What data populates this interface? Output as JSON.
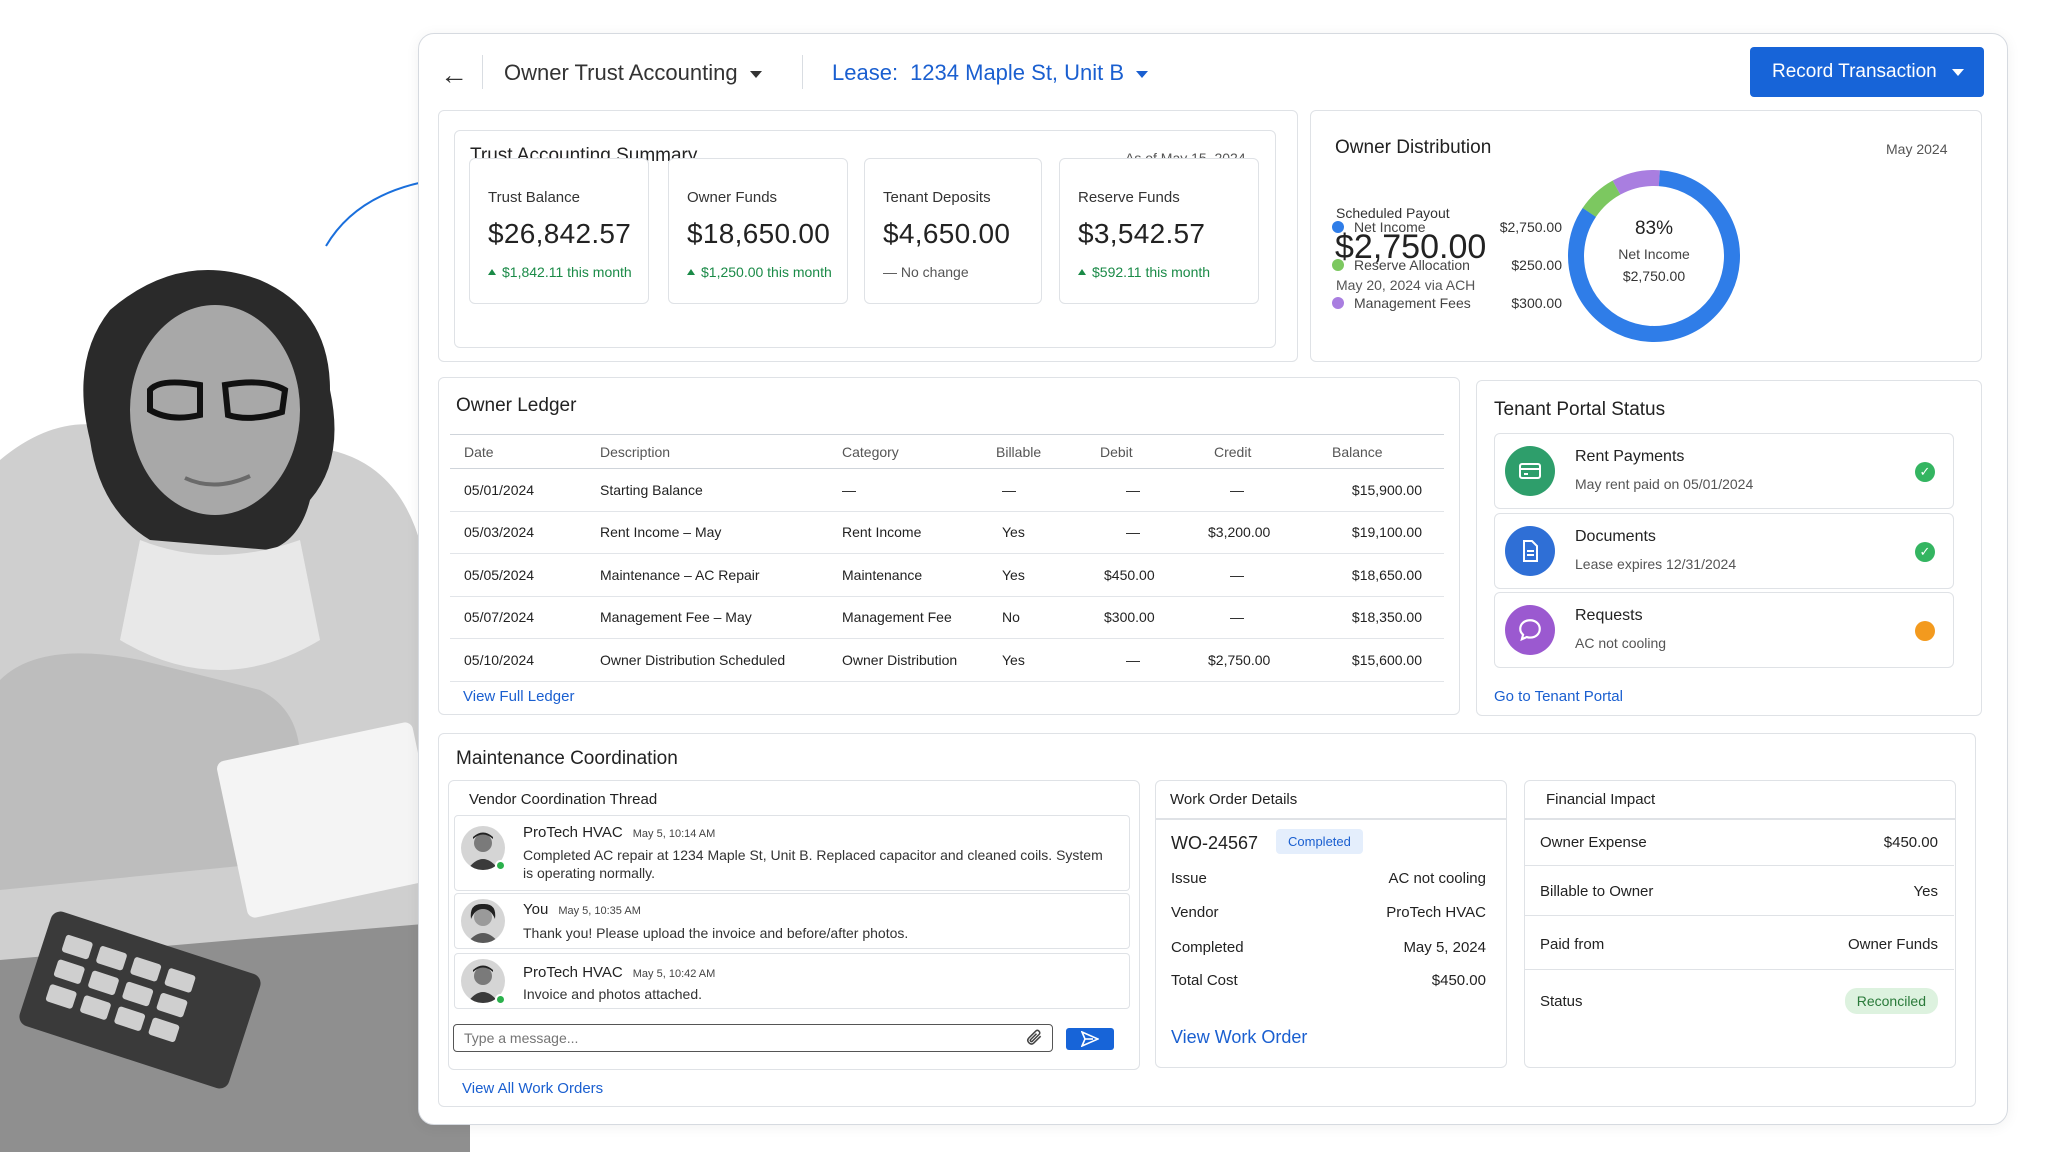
{
  "topbar": {
    "section": "Owner Trust Accounting",
    "lease_label": "Lease:",
    "lease_value": "1234 Maple St, Unit B",
    "record_button": "Record Transaction"
  },
  "summary": {
    "title": "Trust Accounting Summary",
    "as_of": "As of May 15, 2024",
    "cards": [
      {
        "label": "Trust Balance",
        "value": "$26,842.57",
        "change": "$1,842.11 this month",
        "trend": "up"
      },
      {
        "label": "Owner Funds",
        "value": "$18,650.00",
        "change": "$1,250.00 this month",
        "trend": "up"
      },
      {
        "label": "Tenant Deposits",
        "value": "$4,650.00",
        "change": "— No change",
        "trend": "none"
      },
      {
        "label": "Reserve Funds",
        "value": "$3,542.57",
        "change": "$592.11 this month",
        "trend": "up"
      }
    ]
  },
  "distribution": {
    "title": "Owner Distribution",
    "period": "May 2024",
    "payout_label": "Scheduled Payout",
    "payout_value": "$2,750.00",
    "payout_note": "May 20, 2024 via ACH",
    "donut_percent": "83%",
    "donut_label": "Net Income",
    "donut_value": "$2,750.00",
    "chart_data": {
      "type": "pie",
      "series": [
        {
          "name": "Net Income",
          "value": 2750.0,
          "color": "#2f7de8"
        },
        {
          "name": "Reserve Allocation",
          "value": 250.0,
          "color": "#7cc860"
        },
        {
          "name": "Management Fees",
          "value": 300.0,
          "color": "#a97ee0"
        }
      ]
    },
    "legend": [
      {
        "label": "Net Income",
        "amount": "$2,750.00",
        "color": "#2f7de8"
      },
      {
        "label": "Reserve Allocation",
        "amount": "$250.00",
        "color": "#7cc860"
      },
      {
        "label": "Management Fees",
        "amount": "$300.00",
        "color": "#a97ee0"
      }
    ]
  },
  "ledger": {
    "title": "Owner Ledger",
    "columns": [
      "Date",
      "Description",
      "Category",
      "Billable",
      "Debit",
      "Credit",
      "Balance"
    ],
    "rows": [
      [
        "05/01/2024",
        "Starting Balance",
        "—",
        "—",
        "—",
        "—",
        "$15,900.00"
      ],
      [
        "05/03/2024",
        "Rent Income – May",
        "Rent Income",
        "Yes",
        "—",
        "$3,200.00",
        "$19,100.00"
      ],
      [
        "05/05/2024",
        "Maintenance – AC Repair",
        "Maintenance",
        "Yes",
        "$450.00",
        "—",
        "$18,650.00"
      ],
      [
        "05/07/2024",
        "Management Fee – May",
        "Management Fee",
        "No",
        "$300.00",
        "—",
        "$18,350.00"
      ],
      [
        "05/10/2024",
        "Owner Distribution Scheduled",
        "Owner Distribution",
        "Yes",
        "—",
        "$2,750.00",
        "$15,600.00"
      ]
    ],
    "link": "View Full Ledger"
  },
  "portal": {
    "title": "Tenant Portal Status",
    "items": [
      {
        "title": "Rent Payments",
        "sub": "May rent paid on 05/01/2024",
        "status": "ok",
        "color": "#2e9e6b"
      },
      {
        "title": "Documents",
        "sub": "Lease expires 12/31/2024",
        "status": "ok",
        "color": "#2f6fd6"
      },
      {
        "title": "Requests",
        "sub": "AC not cooling",
        "status": "pending",
        "color": "#9b59d0"
      }
    ],
    "link": "Go to Tenant Portal"
  },
  "maintenance": {
    "title": "Maintenance Coordination",
    "thread_title": "Vendor Coordination Thread",
    "messages": [
      {
        "who": "ProTech HVAC",
        "time": "May 5, 10:14 AM",
        "body": "Completed AC repair at 1234 Maple St, Unit B. Replaced capacitor and cleaned coils. System is operating normally."
      },
      {
        "who": "You",
        "time": "May 5, 10:35 AM",
        "body": "Thank you!  Please upload the invoice and before/after photos."
      },
      {
        "who": "ProTech HVAC",
        "time": "May 5, 10:42 AM",
        "body": "Invoice and photos attached."
      }
    ],
    "message_placeholder": "Type a message...",
    "link": "View All Work Orders",
    "work_order": {
      "title": "Work Order Details",
      "id": "WO-24567",
      "status": "Completed",
      "fields": [
        {
          "k": "Issue",
          "v": "AC not cooling"
        },
        {
          "k": "Vendor",
          "v": "ProTech HVAC"
        },
        {
          "k": "Completed",
          "v": "May 5, 2024"
        },
        {
          "k": "Total Cost",
          "v": "$450.00"
        }
      ],
      "link": "View Work Order"
    },
    "financial": {
      "title": "Financial Impact",
      "rows": [
        {
          "k": "Owner Expense",
          "v": "$450.00"
        },
        {
          "k": "Billable to Owner",
          "v": "Yes"
        },
        {
          "k": "Paid from",
          "v": "Owner Funds"
        },
        {
          "k": "Status",
          "v": "Reconciled"
        }
      ]
    }
  }
}
